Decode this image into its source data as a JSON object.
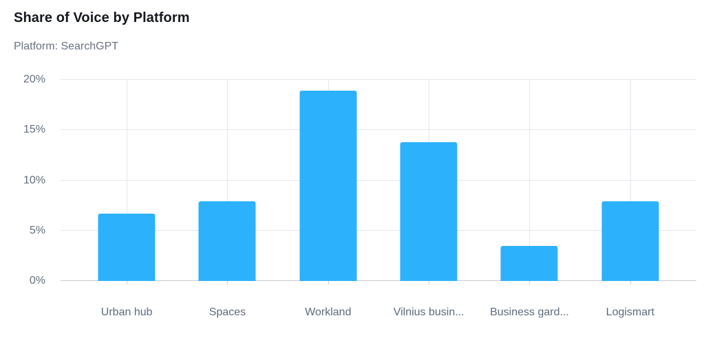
{
  "header": {
    "title": "Share of Voice by Platform",
    "subtitle": "Platform: SearchGPT"
  },
  "chart_data": {
    "type": "bar",
    "title": "Share of Voice by Platform",
    "subtitle": "Platform: SearchGPT",
    "categories": [
      "Urban hub",
      "Spaces",
      "Workland",
      "Vilnius busin...",
      "Business gard...",
      "Logismart"
    ],
    "values": [
      6.7,
      7.9,
      18.9,
      13.8,
      3.5,
      7.9
    ],
    "xlabel": "",
    "ylabel": "",
    "ylim": [
      0,
      20
    ],
    "y_ticks": [
      0,
      5,
      10,
      15,
      20
    ],
    "y_tick_suffix": "%",
    "grid": "horizontal and vertical gridlines, vertical lines at bar centers",
    "legend": false,
    "colors": {
      "bar": "#2CB1FC",
      "gridline": "#E5E4EC",
      "axis_line": "#C9CAD4",
      "tick_label": "#646E7E",
      "title": "#15181E",
      "subtitle": "#6A7282"
    }
  }
}
